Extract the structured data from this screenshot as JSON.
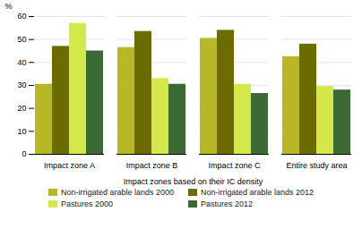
{
  "chart_data": {
    "type": "bar",
    "categories": [
      "Impact zone A",
      "Impact zone B",
      "Impact zone C",
      "Entire study area"
    ],
    "series": [
      {
        "name": "Non-irrigated arable lands 2000",
        "color": "#b8b824",
        "values": [
          30.5,
          46.5,
          50.5,
          42.5
        ]
      },
      {
        "name": "Non-irrigated arable lands 2012",
        "color": "#6b6b00",
        "values": [
          47.0,
          53.5,
          54.0,
          48.0
        ]
      },
      {
        "name": "Pastures 2000",
        "color": "#d4e84a",
        "values": [
          57.0,
          33.0,
          30.5,
          29.5
        ]
      },
      {
        "name": "Pastures 2012",
        "color": "#3a6b35",
        "values": [
          45.0,
          30.5,
          26.5,
          28.0
        ]
      }
    ],
    "ylabel": "%",
    "xlabel": "Impact zones based on their IC density",
    "ylim": [
      0,
      60
    ],
    "yticks": [
      0,
      10,
      20,
      30,
      40,
      50,
      60
    ],
    "grid": true,
    "legend": "bottom"
  }
}
